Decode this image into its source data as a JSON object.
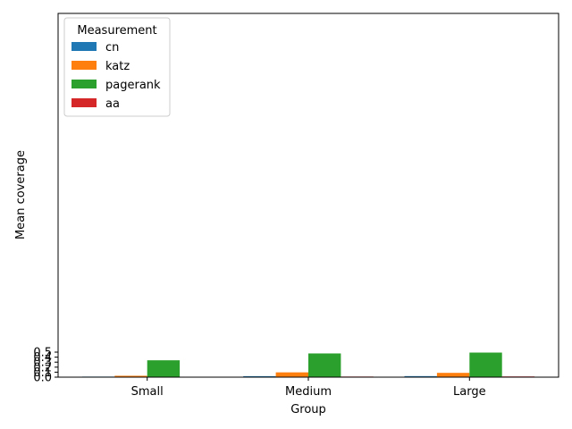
{
  "chart_data": {
    "type": "bar",
    "categories": [
      "Small",
      "Medium",
      "Large"
    ],
    "series": [
      {
        "name": "cn",
        "color": "#1f77b4",
        "values": [
          0.011,
          0.02,
          0.021
        ]
      },
      {
        "name": "katz",
        "color": "#ff7f0e",
        "values": [
          0.028,
          0.096,
          0.086
        ]
      },
      {
        "name": "pagerank",
        "color": "#2ca02c",
        "values": [
          0.337,
          0.474,
          0.491
        ]
      },
      {
        "name": "aa",
        "color": "#d62728",
        "values": [
          0.008,
          0.012,
          0.014
        ]
      }
    ],
    "xlabel": "Group",
    "ylabel": "Mean coverage",
    "ylim": [
      0,
      0.5
    ],
    "yticks": [
      "0.0",
      "0.1",
      "0.2",
      "0.3",
      "0.4",
      "0.5"
    ],
    "grid": false,
    "legend": {
      "title": "Measurement",
      "placement": "top-left"
    }
  }
}
